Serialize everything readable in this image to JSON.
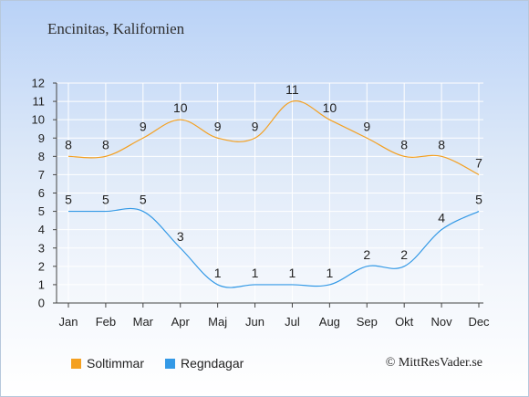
{
  "title": "Encinitas, Kalifornien",
  "copyright": "© MittResVader.se",
  "colors": {
    "soltimmar": "#f4a020",
    "regndagar": "#3399e6",
    "grid": "#ffffff",
    "axis": "#444444"
  },
  "chart_data": {
    "type": "line",
    "categories": [
      "Jan",
      "Feb",
      "Mar",
      "Apr",
      "Maj",
      "Jun",
      "Jul",
      "Aug",
      "Sep",
      "Okt",
      "Nov",
      "Dec"
    ],
    "series": [
      {
        "name": "Soltimmar",
        "color": "#f4a020",
        "values": [
          8,
          8,
          9,
          10,
          9,
          9,
          11,
          10,
          9,
          8,
          8,
          7
        ]
      },
      {
        "name": "Regndagar",
        "color": "#3399e6",
        "values": [
          5,
          5,
          5,
          3,
          1,
          1,
          1,
          1,
          2,
          2,
          4,
          5
        ]
      }
    ],
    "ylim": [
      0,
      12
    ],
    "yticks": [
      0,
      1,
      2,
      3,
      4,
      5,
      6,
      7,
      8,
      9,
      10,
      11,
      12
    ],
    "grid": true,
    "legend": "bottom-left"
  }
}
